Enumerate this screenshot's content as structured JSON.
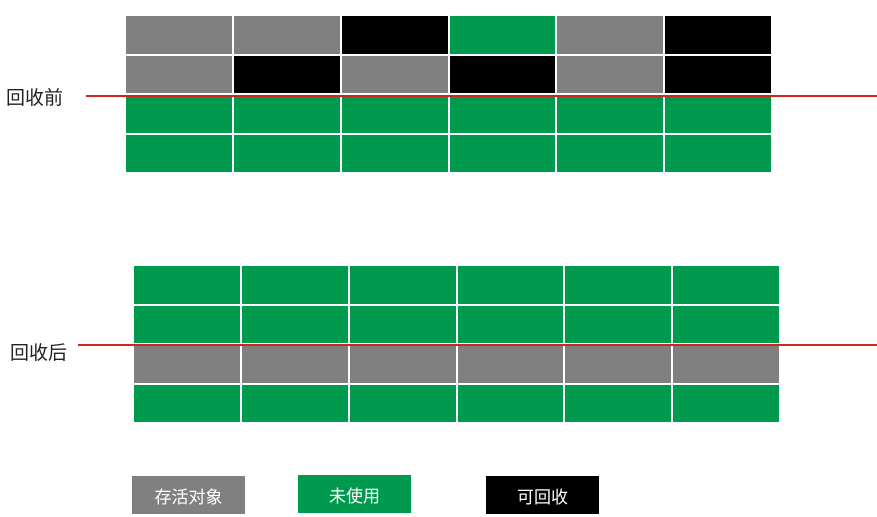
{
  "colors": {
    "live": "#808080",
    "unused": "#009a4e",
    "recyclable": "#000000"
  },
  "before": {
    "label": "回收前",
    "rows": [
      [
        "live",
        "live",
        "recyclable",
        "unused",
        "live",
        "recyclable"
      ],
      [
        "live",
        "recyclable",
        "live",
        "recyclable",
        "live",
        "recyclable"
      ],
      [
        "unused",
        "unused",
        "unused",
        "unused",
        "unused",
        "unused"
      ],
      [
        "unused",
        "unused",
        "unused",
        "unused",
        "unused",
        "unused"
      ]
    ]
  },
  "after": {
    "label": "回收后",
    "rows": [
      [
        "unused",
        "unused",
        "unused",
        "unused",
        "unused",
        "unused"
      ],
      [
        "unused",
        "unused",
        "unused",
        "unused",
        "unused",
        "unused"
      ],
      [
        "live",
        "live",
        "live",
        "live",
        "live",
        "live"
      ],
      [
        "unused",
        "unused",
        "unused",
        "unused",
        "unused",
        "unused"
      ]
    ]
  },
  "legend": {
    "live": "存活对象",
    "unused": "未使用",
    "recyclable": "可回收"
  }
}
